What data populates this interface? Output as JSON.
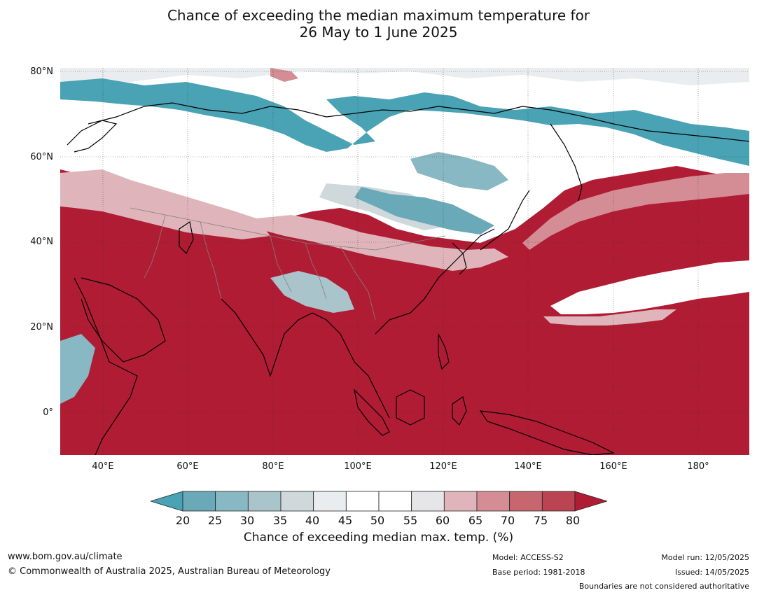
{
  "title": {
    "line1": "Chance of exceeding the median maximum temperature for",
    "line2": "26 May to 1 June 2025"
  },
  "map": {
    "lat_labels": [
      "80°N",
      "60°N",
      "40°N",
      "20°N",
      "0°"
    ],
    "lon_labels": [
      "40°E",
      "60°E",
      "80°E",
      "100°E",
      "120°E",
      "140°E",
      "160°E",
      "180°"
    ],
    "lon_range": [
      30,
      192
    ],
    "lat_range": [
      -10,
      81
    ],
    "colors": {
      "ocean_warm": "#b01c34",
      "cool": "#4aa2b5",
      "neutral": "#ffffff",
      "coast": "#000000",
      "borders": "#808080"
    }
  },
  "colorbar": {
    "ticks": [
      "20",
      "25",
      "30",
      "35",
      "40",
      "45",
      "50",
      "55",
      "60",
      "65",
      "70",
      "75",
      "80"
    ],
    "colors": [
      "#4aa2b5",
      "#6aa9b7",
      "#88b8c3",
      "#a9c5cb",
      "#cfd8db",
      "#e9edef",
      "#ffffff",
      "#ffffff",
      "#e6e6e8",
      "#dfb5bb",
      "#d48c95",
      "#c7666f",
      "#bb4453",
      "#b01c34"
    ],
    "label": "Chance of exceeding median max. temp. (%)"
  },
  "footer": {
    "url": "www.bom.gov.au/climate",
    "copyright": "© Commonwealth of Australia 2025, Australian Bureau of Meteorology",
    "model": "Model: ACCESS-S2",
    "base_period": "Base period: 1981-2018",
    "model_run": "Model run: 12/05/2025",
    "issued": "Issued: 14/05/2025",
    "disclaimer": "Boundaries are not considered authoritative"
  }
}
